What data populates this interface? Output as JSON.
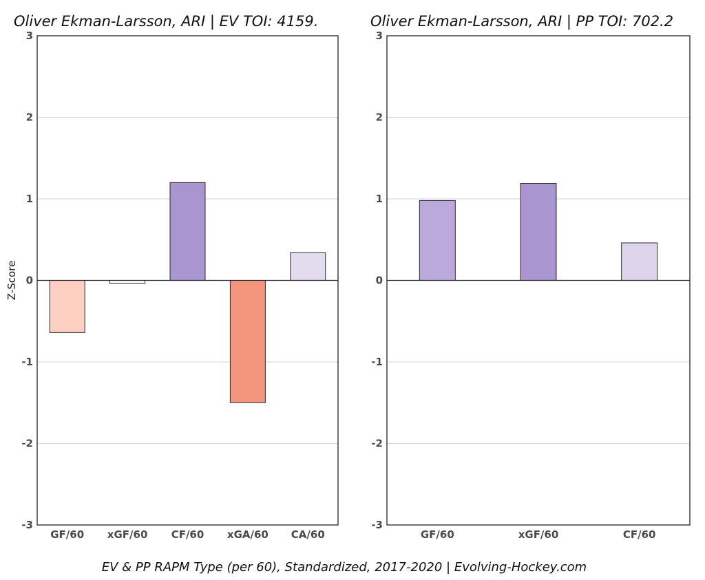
{
  "chart_data": [
    {
      "type": "bar",
      "title": "Oliver Ekman-Larsson, ARI  |  EV TOI: 4159.",
      "ylabel": "Z-Score",
      "ylim": [
        -3,
        3
      ],
      "yticks": [
        -3,
        -2,
        -1,
        0,
        1,
        2,
        3
      ],
      "grid": true,
      "categories": [
        "GF/60",
        "xGF/60",
        "CF/60",
        "xGA/60",
        "CA/60"
      ],
      "values": [
        -0.64,
        -0.04,
        1.2,
        -1.5,
        0.34
      ],
      "colors": [
        "#fccfc2",
        "#ffffff",
        "#a996d1",
        "#f4957e",
        "#e3dcee"
      ]
    },
    {
      "type": "bar",
      "title": "Oliver Ekman-Larsson, ARI  |  PP TOI: 702.2",
      "ylabel": "",
      "ylim": [
        -3,
        3
      ],
      "yticks": [
        -3,
        -2,
        -1,
        0,
        1,
        2,
        3
      ],
      "grid": true,
      "categories": [
        "GF/60",
        "xGF/60",
        "CF/60"
      ],
      "values": [
        0.98,
        1.19,
        0.46
      ],
      "colors": [
        "#bca9dc",
        "#a996d1",
        "#ded5eb"
      ]
    }
  ],
  "caption": "EV & PP RAPM Type (per 60), Standardized, 2017-2020    |    Evolving-Hockey.com"
}
